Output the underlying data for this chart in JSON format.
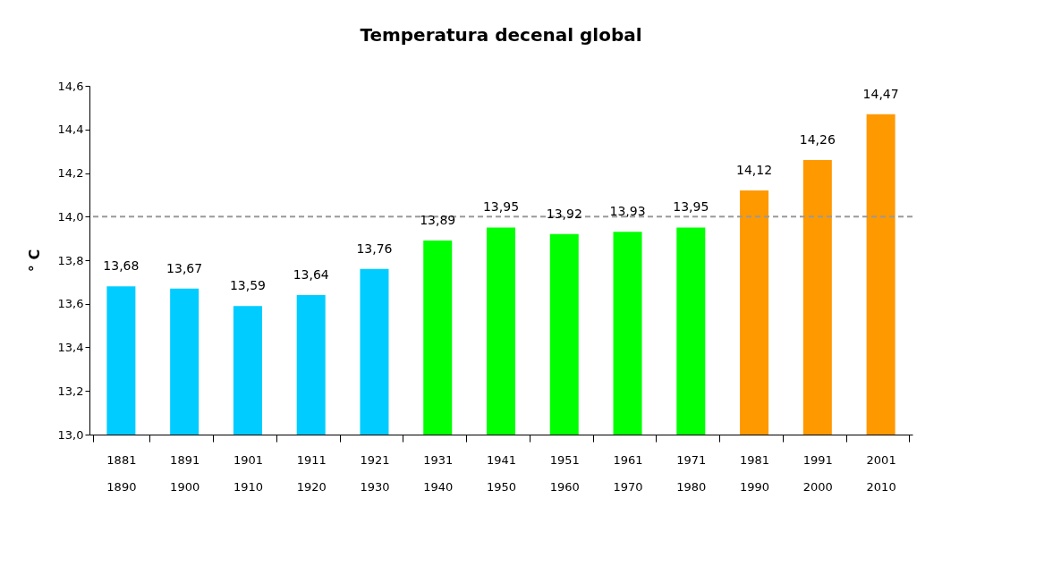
{
  "chart_data": {
    "type": "bar",
    "title": "Temperatura decenal global",
    "ylabel": "° C",
    "categories": [
      "1881\n1890",
      "1891\n1900",
      "1901\n1910",
      "1911\n1920",
      "1921\n1930",
      "1931\n1940",
      "1941\n1950",
      "1951\n1960",
      "1961\n1970",
      "1971\n1980",
      "1981\n1990",
      "1991\n2000",
      "2001\n2010"
    ],
    "values": [
      13.68,
      13.67,
      13.59,
      13.64,
      13.76,
      13.89,
      13.95,
      13.92,
      13.93,
      13.95,
      14.12,
      14.26,
      14.47
    ],
    "value_labels": [
      "13,68",
      "13,67",
      "13,59",
      "13,64",
      "13,76",
      "13,89",
      "13,95",
      "13,92",
      "13,93",
      "13,95",
      "14,12",
      "14,26",
      "14,47"
    ],
    "colors": [
      "#00ccff",
      "#00ccff",
      "#00ccff",
      "#00ccff",
      "#00ccff",
      "#00ff00",
      "#00ff00",
      "#00ff00",
      "#00ff00",
      "#00ff00",
      "#ff9900",
      "#ff9900",
      "#ff9900"
    ],
    "ylim": [
      13.0,
      14.6
    ],
    "yticks": [
      {
        "value": 13.0,
        "label": "13,0"
      },
      {
        "value": 13.2,
        "label": "13,2"
      },
      {
        "value": 13.4,
        "label": "13,4"
      },
      {
        "value": 13.6,
        "label": "13,6"
      },
      {
        "value": 13.8,
        "label": "13,8"
      },
      {
        "value": 14.0,
        "label": "14,0"
      },
      {
        "value": 14.2,
        "label": "14,2"
      },
      {
        "value": 14.4,
        "label": "14,4"
      },
      {
        "value": 14.6,
        "label": "14,6"
      }
    ],
    "ref_lines": [
      {
        "axis": "y",
        "value": 14.0,
        "color": "#999999",
        "line_style": "dashed"
      }
    ],
    "grid": false
  }
}
